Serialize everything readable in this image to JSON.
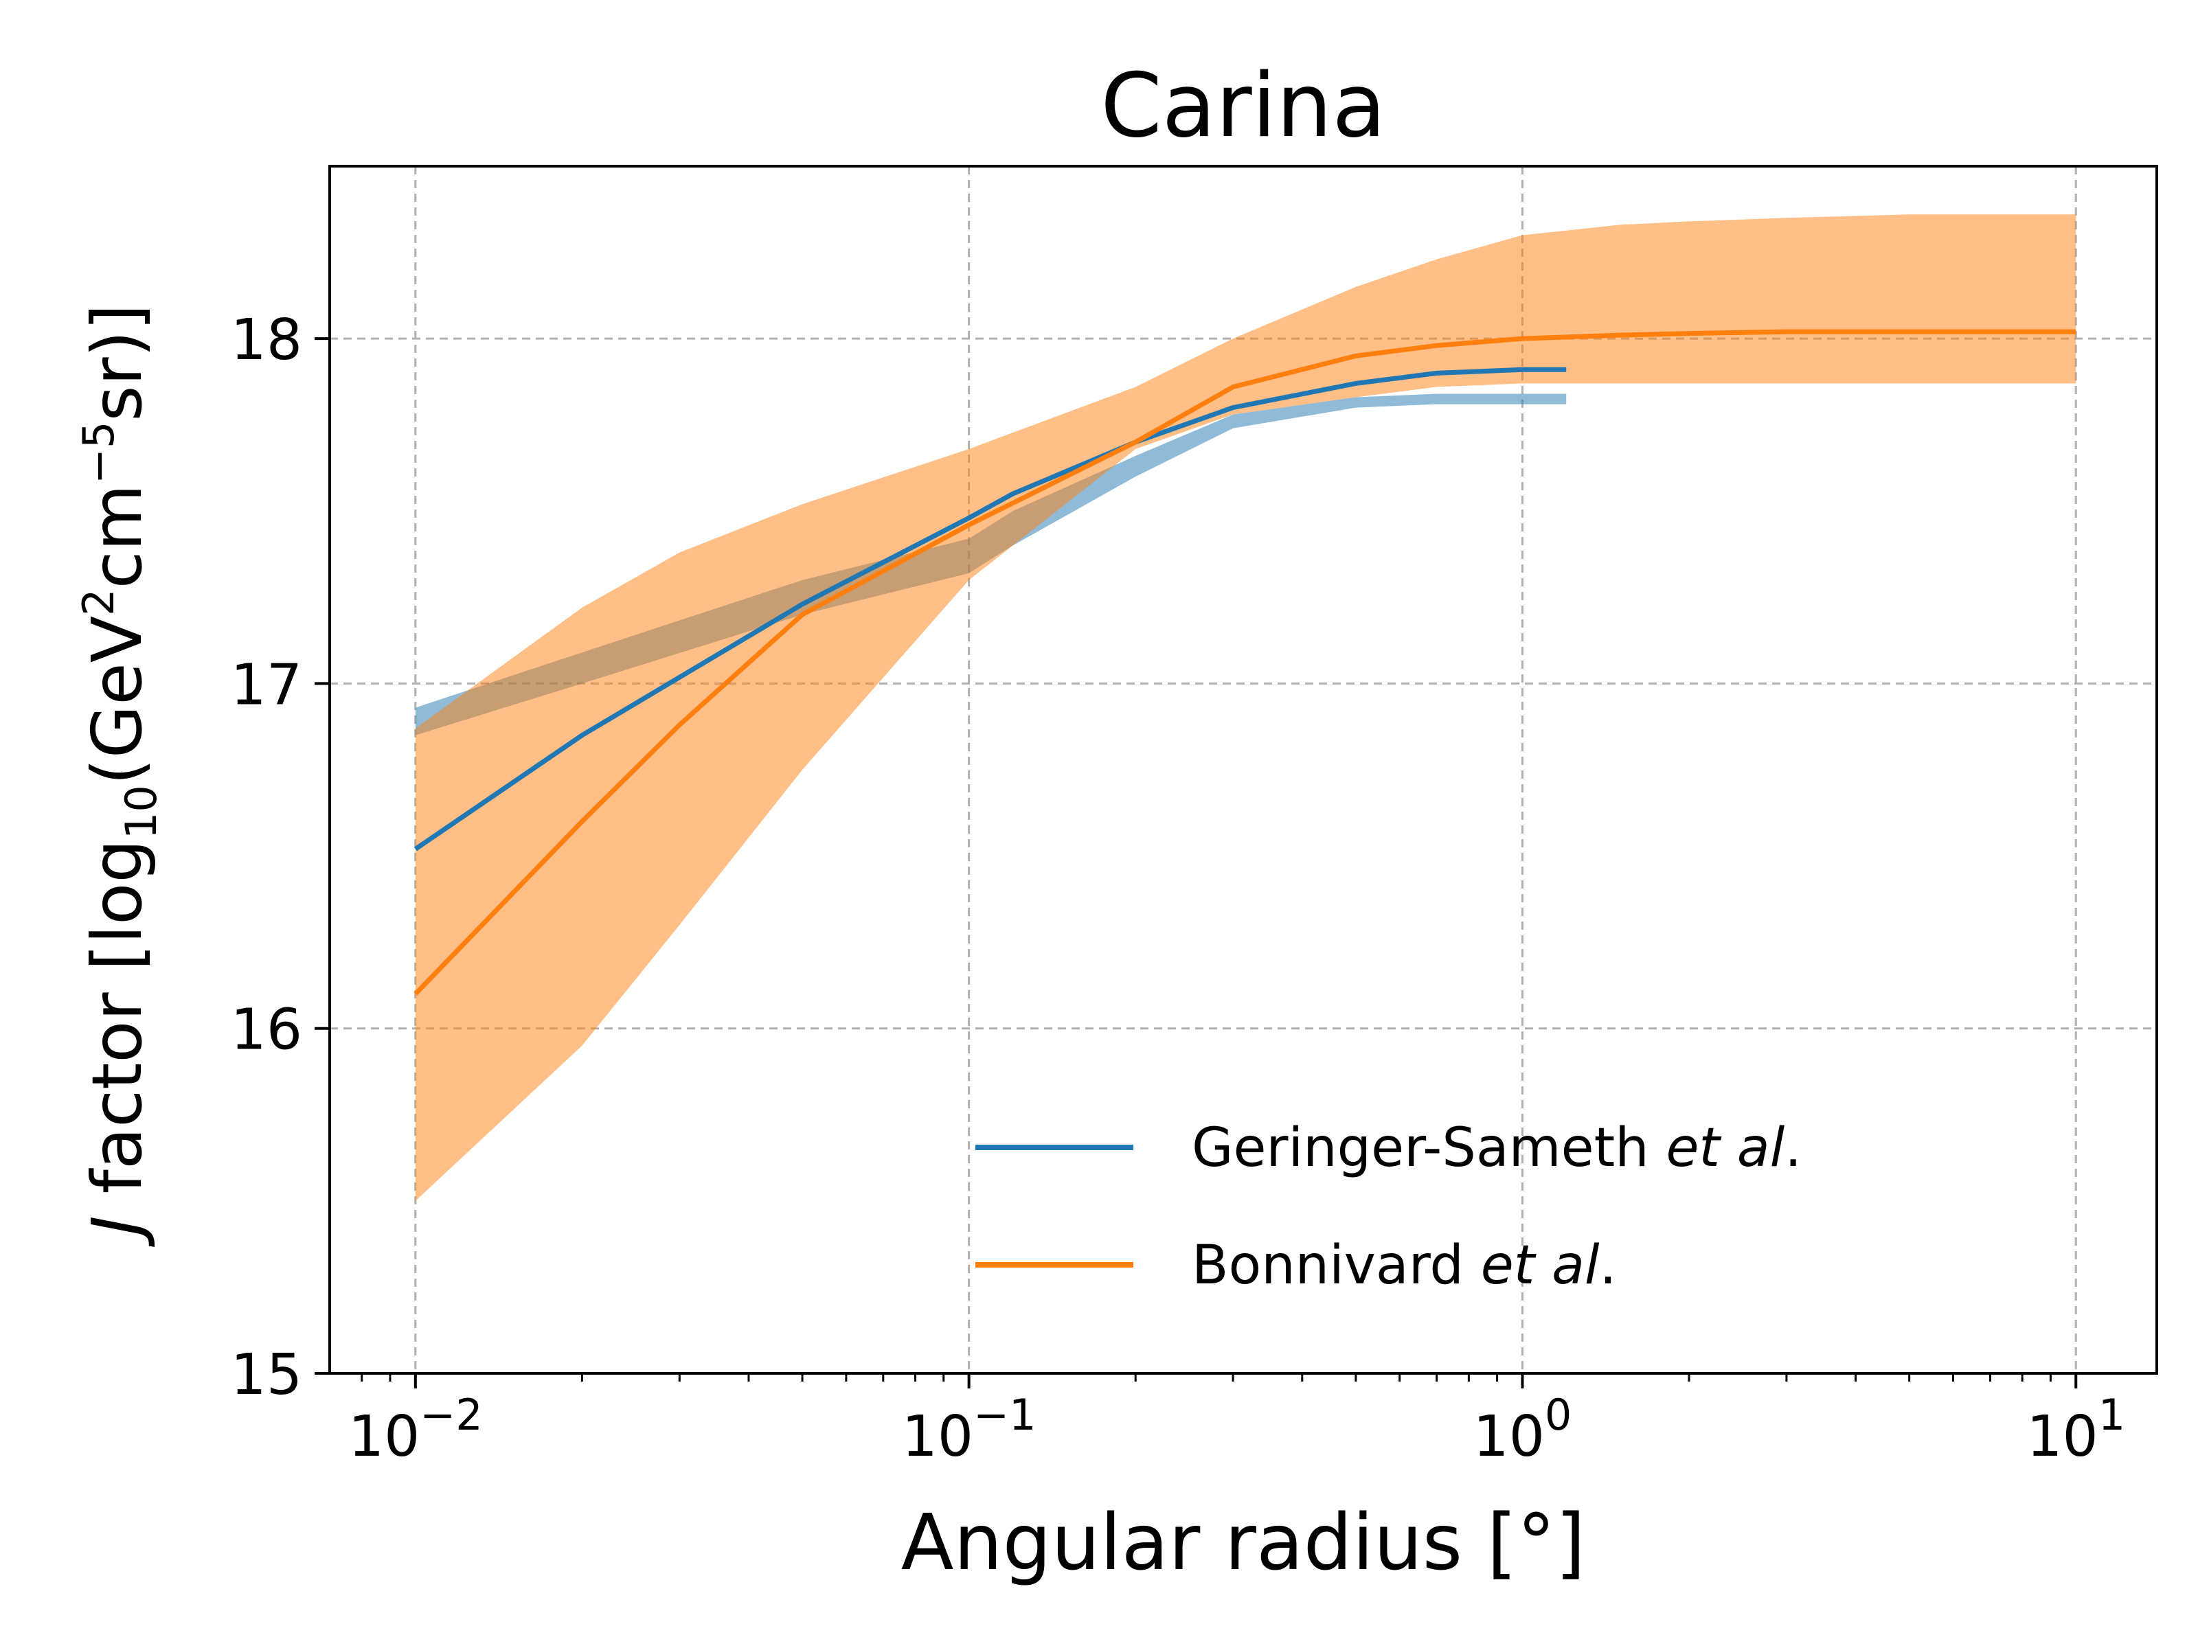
{
  "chart_data": {
    "type": "line",
    "title": "Carina",
    "xlabel": "Angular radius [°]",
    "ylabel": {
      "prefix_italic": "J",
      "prefix": " factor [log",
      "sub": "10",
      "mid1": "(GeV",
      "sup1": "2",
      "mid2": "cm",
      "sup2": "−5",
      "suffix": "sr)]"
    },
    "xscale": "log",
    "xlim": [
      0.007,
      14
    ],
    "ylim": [
      15,
      18.5
    ],
    "grid": true,
    "legend_position": "lower-right",
    "x_ticks": [
      {
        "value": 0.01,
        "base": "10",
        "exp": "−2"
      },
      {
        "value": 0.1,
        "base": "10",
        "exp": "−1"
      },
      {
        "value": 1,
        "base": "10",
        "exp": "0"
      },
      {
        "value": 10,
        "base": "10",
        "exp": "1"
      }
    ],
    "y_ticks": [
      {
        "value": 15,
        "label": "15"
      },
      {
        "value": 16,
        "label": "16"
      },
      {
        "value": 17,
        "label": "17"
      },
      {
        "value": 18,
        "label": "18"
      }
    ],
    "series": [
      {
        "name": "Geringer-Sameth",
        "name_suffix_italic": "et al",
        "name_suffix": ".",
        "color": "#1f77b4",
        "band_color": "#1f77b4",
        "x": [
          0.01,
          0.02,
          0.05,
          0.1,
          0.12,
          0.2,
          0.3,
          0.5,
          0.7,
          1.0,
          1.2
        ],
        "y": [
          16.52,
          16.85,
          17.23,
          17.48,
          17.55,
          17.7,
          17.8,
          17.87,
          17.9,
          17.91,
          17.91
        ],
        "y_lower": [
          16.85,
          17.0,
          17.2,
          17.32,
          17.4,
          17.6,
          17.74,
          17.8,
          17.81,
          17.81,
          17.81
        ],
        "y_upper": [
          16.93,
          17.09,
          17.3,
          17.42,
          17.5,
          17.66,
          17.78,
          17.83,
          17.84,
          17.84,
          17.84
        ]
      },
      {
        "name": "Bonnivard",
        "name_suffix_italic": "et al",
        "name_suffix": ".",
        "color": "#ff7f0e",
        "band_color": "#ff7f0e",
        "x": [
          0.01,
          0.02,
          0.03,
          0.05,
          0.1,
          0.2,
          0.3,
          0.5,
          0.7,
          1.0,
          1.5,
          2.0,
          3.0,
          5.0,
          7.0,
          10.0
        ],
        "y": [
          16.1,
          16.6,
          16.88,
          17.2,
          17.46,
          17.7,
          17.86,
          17.95,
          17.98,
          18.0,
          18.01,
          18.015,
          18.02,
          18.02,
          18.02,
          18.02
        ],
        "y_lower": [
          15.5,
          15.95,
          16.3,
          16.75,
          17.3,
          17.68,
          17.78,
          17.83,
          17.86,
          17.87,
          17.87,
          17.87,
          17.87,
          17.87,
          17.87,
          17.87
        ],
        "y_upper": [
          16.87,
          17.22,
          17.38,
          17.52,
          17.68,
          17.86,
          18.0,
          18.15,
          18.23,
          18.3,
          18.33,
          18.34,
          18.35,
          18.36,
          18.36,
          18.36
        ]
      }
    ]
  }
}
